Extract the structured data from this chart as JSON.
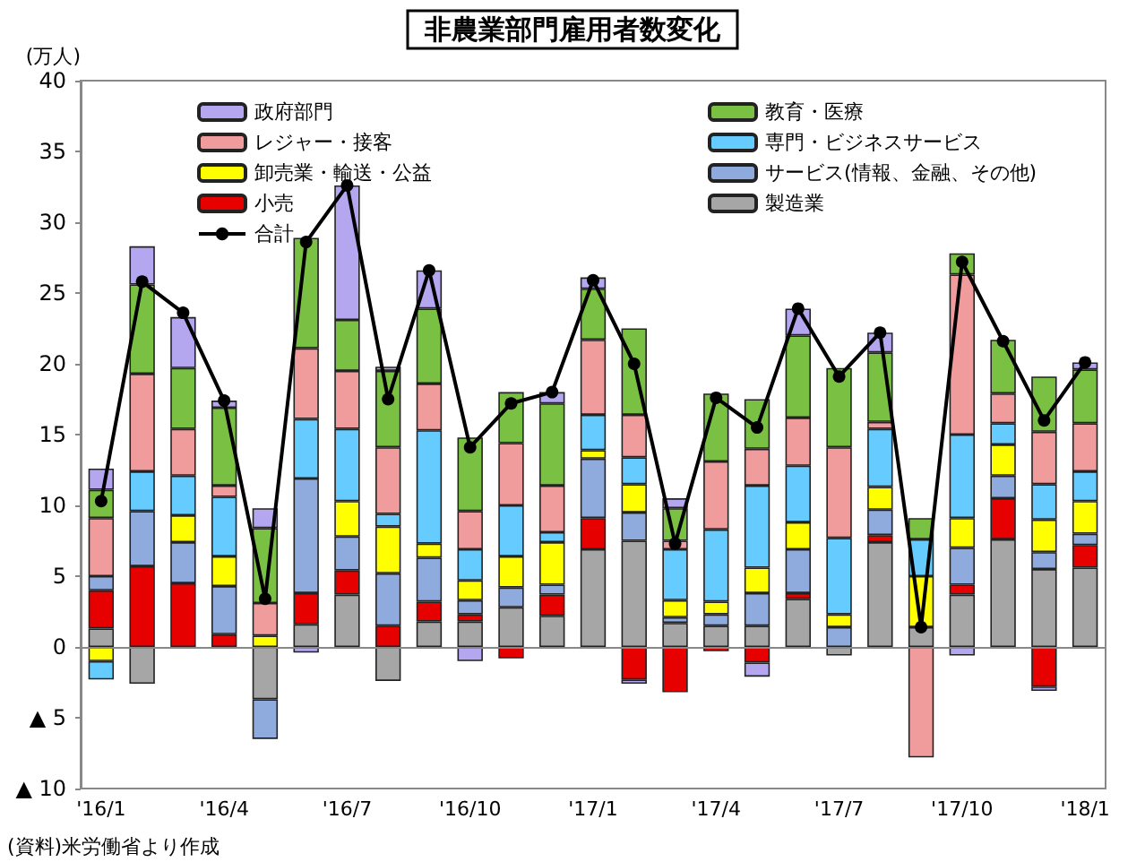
{
  "chart_data": {
    "type": "bar",
    "title": "非農業部門雇用者数変化",
    "ylabel": "(万人)",
    "annotations": [
      "(資料)米労働省より作成"
    ],
    "categories": [
      "'16/1",
      null,
      null,
      "'16/4",
      null,
      null,
      "'16/7",
      null,
      null,
      "'16/10",
      null,
      null,
      "'17/1",
      null,
      null,
      "'17/4",
      null,
      null,
      "'17/7",
      null,
      null,
      "'17/10",
      null,
      null,
      "'18/1"
    ],
    "stacked": true,
    "ref_lines": [
      {
        "axis": "y",
        "value": 0,
        "color": "#888888"
      }
    ],
    "legend": "top",
    "grid": false,
    "ylim": [
      -10,
      40
    ],
    "yticks": [
      {
        "value": -10,
        "label": "▲ 10"
      },
      {
        "value": -5,
        "label": "▲ 5"
      },
      0,
      5,
      10,
      15,
      20,
      25,
      30,
      35,
      40
    ],
    "series": [
      {
        "name": "製造業",
        "color": "#a6a6a6",
        "values": [
          1.3,
          -2.6,
          null,
          0,
          -3.7,
          1.6,
          3.7,
          -2.4,
          1.8,
          1.8,
          2.8,
          2.2,
          6.9,
          7.5,
          1.7,
          1.5,
          1.5,
          3.4,
          -0.6,
          7.4,
          1.4,
          3.7,
          7.6,
          5.5,
          5.6
        ]
      },
      {
        "name": "小売",
        "color": "#e60000",
        "values": [
          2.7,
          5.7,
          4.5,
          0.9,
          0,
          2.2,
          1.7,
          1.5,
          1.4,
          0.5,
          -0.8,
          1.5,
          2.2,
          -2.3,
          -3.2,
          -0.3,
          -1.1,
          0.4,
          0,
          0.5,
          0,
          0.7,
          2.9,
          -2.8,
          1.6
        ]
      },
      {
        "name": "サービス(情報、金融、その他)",
        "color": "#8faadc",
        "values": [
          1.0,
          3.9,
          2.9,
          3.4,
          -2.8,
          8.1,
          2.4,
          3.7,
          3.1,
          1.0,
          1.4,
          0.7,
          4.2,
          2.0,
          0.4,
          0.8,
          2.3,
          3.1,
          1.4,
          1.8,
          0,
          2.6,
          1.6,
          1.2,
          0.8
        ]
      },
      {
        "name": "卸売業・輸送・公益",
        "color": "#ffff00",
        "values": [
          -1.0,
          null,
          1.9,
          2.1,
          0.8,
          0,
          2.5,
          3.3,
          1.0,
          1.4,
          2.2,
          3.0,
          0.6,
          2.0,
          1.2,
          0.9,
          1.8,
          1.9,
          0.9,
          1.6,
          3.6,
          2.1,
          2.2,
          2.3,
          2.3
        ]
      },
      {
        "name": "専門・ビジネスサービス",
        "color": "#66ccff",
        "values": [
          -1.3,
          2.8,
          2.8,
          4.2,
          0,
          4.2,
          5.1,
          0.9,
          8.0,
          2.2,
          3.6,
          0.7,
          2.5,
          1.9,
          3.6,
          5.1,
          5.8,
          4.0,
          5.4,
          4.1,
          2.6,
          5.9,
          1.5,
          2.5,
          2.1
        ]
      },
      {
        "name": "レジャー・接客",
        "color": "#f19c9c",
        "values": [
          4.1,
          6.9,
          3.3,
          0.8,
          2.3,
          5.0,
          4.1,
          4.7,
          3.3,
          2.7,
          4.4,
          3.3,
          5.3,
          3.0,
          0.6,
          4.8,
          2.6,
          3.4,
          6.4,
          0.5,
          -7.8,
          11.3,
          2.1,
          3.7,
          3.4
        ]
      },
      {
        "name": "教育・医療",
        "color": "#7ac143",
        "values": [
          2.0,
          6.3,
          4.3,
          5.5,
          5.3,
          7.8,
          3.6,
          5.4,
          5.3,
          5.2,
          3.6,
          5.8,
          3.6,
          6.1,
          2.3,
          4.8,
          3.5,
          5.8,
          5.6,
          4.9,
          1.5,
          1.5,
          3.8,
          3.9,
          3.8
        ]
      },
      {
        "name": "政府部門",
        "color": "#b4a7f0",
        "values": [
          1.5,
          2.7,
          3.6,
          0.5,
          1.4,
          -0.4,
          9.5,
          0.3,
          2.7,
          -1.0,
          0,
          0.8,
          0.8,
          -0.3,
          0.7,
          0,
          -1.0,
          1.9,
          0,
          1.4,
          0,
          -0.6,
          0,
          -0.3,
          0.5
        ]
      },
      {
        "name": "合計",
        "type": "line",
        "color": "#000000",
        "marker": "circle",
        "values": [
          10.3,
          25.8,
          23.6,
          17.4,
          3.4,
          28.6,
          32.6,
          17.5,
          26.6,
          14.1,
          17.2,
          18.0,
          25.9,
          20.0,
          7.3,
          17.6,
          15.5,
          23.9,
          19.1,
          22.2,
          1.4,
          27.2,
          21.6,
          16.0,
          20.1
        ]
      }
    ]
  }
}
